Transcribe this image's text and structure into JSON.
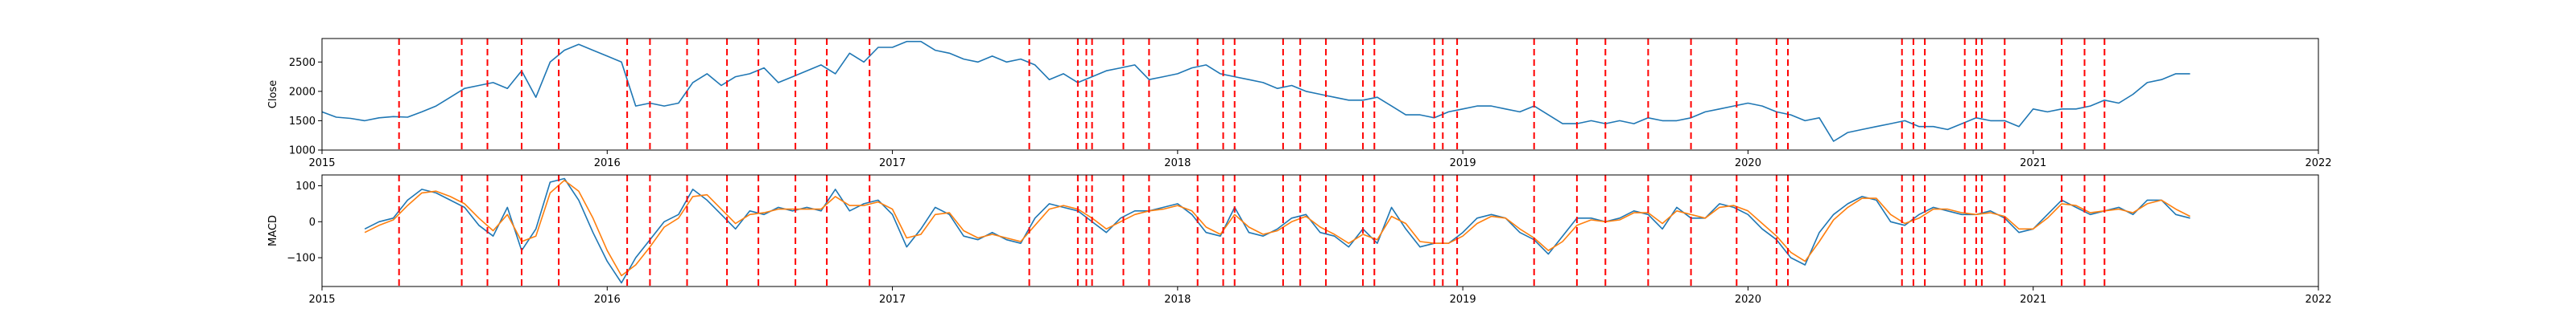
{
  "chart_data": [
    {
      "type": "line",
      "title": "",
      "xlabel": "",
      "ylabel": "Close",
      "xlim": [
        2015.0,
        2022.0
      ],
      "ylim": [
        1000,
        2900
      ],
      "x_ticks": [
        2015,
        2016,
        2017,
        2018,
        2019,
        2020,
        2021,
        2022
      ],
      "x_tick_labels": [
        "2015",
        "2016",
        "2017",
        "2018",
        "2019",
        "2020",
        "2021",
        "2022"
      ],
      "y_ticks": [
        1000,
        1500,
        2000,
        2500
      ],
      "y_tick_labels": [
        "1000",
        "1500",
        "2000",
        "2500"
      ],
      "grid": false,
      "series": [
        {
          "color": "#1f77b4",
          "x": [
            2015.0,
            2015.05,
            2015.1,
            2015.15,
            2015.2,
            2015.25,
            2015.3,
            2015.35,
            2015.4,
            2015.45,
            2015.5,
            2015.55,
            2015.6,
            2015.65,
            2015.7,
            2015.75,
            2015.8,
            2015.85,
            2015.9,
            2015.95,
            2016.0,
            2016.05,
            2016.1,
            2016.15,
            2016.2,
            2016.25,
            2016.3,
            2016.35,
            2016.4,
            2016.45,
            2016.5,
            2016.55,
            2016.6,
            2016.65,
            2016.7,
            2016.75,
            2016.8,
            2016.85,
            2016.9,
            2016.95,
            2017.0,
            2017.05,
            2017.1,
            2017.15,
            2017.2,
            2017.25,
            2017.3,
            2017.35,
            2017.4,
            2017.45,
            2017.5,
            2017.55,
            2017.6,
            2017.65,
            2017.7,
            2017.75,
            2017.8,
            2017.85,
            2017.9,
            2017.95,
            2018.0,
            2018.05,
            2018.1,
            2018.15,
            2018.2,
            2018.25,
            2018.3,
            2018.35,
            2018.4,
            2018.45,
            2018.5,
            2018.55,
            2018.6,
            2018.65,
            2018.7,
            2018.75,
            2018.8,
            2018.85,
            2018.9,
            2018.95,
            2019.0,
            2019.05,
            2019.1,
            2019.15,
            2019.2,
            2019.25,
            2019.3,
            2019.35,
            2019.4,
            2019.45,
            2019.5,
            2019.55,
            2019.6,
            2019.65,
            2019.7,
            2019.75,
            2019.8,
            2019.85,
            2019.9,
            2019.95,
            2020.0,
            2020.05,
            2020.1,
            2020.15,
            2020.2,
            2020.25,
            2020.3,
            2020.35,
            2020.4,
            2020.45,
            2020.5,
            2020.55,
            2020.6,
            2020.65,
            2020.7,
            2020.75,
            2020.8,
            2020.85,
            2020.9,
            2020.95,
            2021.0,
            2021.05,
            2021.1,
            2021.15,
            2021.2,
            2021.25,
            2021.3,
            2021.35,
            2021.4,
            2021.45,
            2021.5,
            2021.55
          ],
          "y": [
            1650,
            1560,
            1540,
            1500,
            1550,
            1570,
            1560,
            1650,
            1750,
            1900,
            2050,
            2100,
            2150,
            2050,
            2350,
            1900,
            2500,
            2700,
            2800,
            2700,
            2600,
            2500,
            1750,
            1800,
            1750,
            1800,
            2150,
            2300,
            2100,
            2250,
            2300,
            2400,
            2150,
            2250,
            2350,
            2450,
            2300,
            2650,
            2500,
            2750,
            2750,
            2850,
            2850,
            2700,
            2650,
            2550,
            2500,
            2600,
            2500,
            2550,
            2450,
            2200,
            2300,
            2150,
            2250,
            2350,
            2400,
            2450,
            2200,
            2250,
            2300,
            2400,
            2450,
            2300,
            2250,
            2200,
            2150,
            2050,
            2100,
            2000,
            1950,
            1900,
            1850,
            1850,
            1900,
            1750,
            1600,
            1600,
            1550,
            1650,
            1700,
            1750,
            1750,
            1700,
            1650,
            1750,
            1600,
            1450,
            1450,
            1500,
            1450,
            1500,
            1450,
            1550,
            1500,
            1500,
            1550,
            1650,
            1700,
            1750,
            1800,
            1750,
            1650,
            1600,
            1500,
            1550,
            1150,
            1300,
            1350,
            1400,
            1450,
            1500,
            1400,
            1400,
            1350,
            1450,
            1550,
            1500,
            1500,
            1400,
            1700,
            1650,
            1700,
            1700,
            1750,
            1850,
            1800,
            1950,
            2150,
            2200,
            2300,
            2300
          ]
        }
      ],
      "vlines_color": "#ff0000",
      "vlines_x": [
        2015.27,
        2015.49,
        2015.58,
        2015.7,
        2015.83,
        2016.07,
        2016.15,
        2016.28,
        2016.42,
        2016.53,
        2016.66,
        2016.77,
        2016.92,
        2017.48,
        2017.65,
        2017.68,
        2017.7,
        2017.81,
        2017.9,
        2018.07,
        2018.16,
        2018.2,
        2018.37,
        2018.43,
        2018.52,
        2018.65,
        2018.69,
        2018.9,
        2018.93,
        2018.98,
        2019.25,
        2019.4,
        2019.5,
        2019.65,
        2019.8,
        2019.96,
        2020.1,
        2020.14,
        2020.54,
        2020.58,
        2020.62,
        2020.76,
        2020.8,
        2020.82,
        2020.9,
        2021.1,
        2021.18,
        2021.25
      ]
    },
    {
      "type": "line",
      "title": "",
      "xlabel": "",
      "ylabel": "MACD",
      "xlim": [
        2015.0,
        2022.0
      ],
      "ylim": [
        -180,
        130
      ],
      "x_ticks": [
        2015,
        2016,
        2017,
        2018,
        2019,
        2020,
        2021,
        2022
      ],
      "x_tick_labels": [
        "2015",
        "2016",
        "2017",
        "2018",
        "2019",
        "2020",
        "2021",
        "2022"
      ],
      "y_ticks": [
        -100,
        0,
        100
      ],
      "y_tick_labels": [
        "−100",
        "0",
        "100"
      ],
      "grid": false,
      "series": [
        {
          "color": "#1f77b4",
          "x": [
            2015.15,
            2015.2,
            2015.25,
            2015.3,
            2015.35,
            2015.4,
            2015.45,
            2015.5,
            2015.55,
            2015.6,
            2015.65,
            2015.7,
            2015.75,
            2015.8,
            2015.85,
            2015.9,
            2015.95,
            2016.0,
            2016.05,
            2016.1,
            2016.15,
            2016.2,
            2016.25,
            2016.3,
            2016.35,
            2016.4,
            2016.45,
            2016.5,
            2016.55,
            2016.6,
            2016.65,
            2016.7,
            2016.75,
            2016.8,
            2016.85,
            2016.9,
            2016.95,
            2017.0,
            2017.05,
            2017.1,
            2017.15,
            2017.2,
            2017.25,
            2017.3,
            2017.35,
            2017.4,
            2017.45,
            2017.5,
            2017.55,
            2017.6,
            2017.65,
            2017.7,
            2017.75,
            2017.8,
            2017.85,
            2017.9,
            2017.95,
            2018.0,
            2018.05,
            2018.1,
            2018.15,
            2018.2,
            2018.25,
            2018.3,
            2018.35,
            2018.4,
            2018.45,
            2018.5,
            2018.55,
            2018.6,
            2018.65,
            2018.7,
            2018.75,
            2018.8,
            2018.85,
            2018.9,
            2018.95,
            2019.0,
            2019.05,
            2019.1,
            2019.15,
            2019.2,
            2019.25,
            2019.3,
            2019.35,
            2019.4,
            2019.45,
            2019.5,
            2019.55,
            2019.6,
            2019.65,
            2019.7,
            2019.75,
            2019.8,
            2019.85,
            2019.9,
            2019.95,
            2020.0,
            2020.05,
            2020.1,
            2020.15,
            2020.2,
            2020.25,
            2020.3,
            2020.35,
            2020.4,
            2020.45,
            2020.5,
            2020.55,
            2020.6,
            2020.65,
            2020.7,
            2020.75,
            2020.8,
            2020.85,
            2020.9,
            2020.95,
            2021.0,
            2021.05,
            2021.1,
            2021.15,
            2021.2,
            2021.25,
            2021.3,
            2021.35,
            2021.4,
            2021.45,
            2021.5,
            2021.55
          ],
          "y": [
            -20,
            0,
            10,
            60,
            90,
            80,
            60,
            40,
            -10,
            -40,
            40,
            -80,
            -20,
            110,
            120,
            60,
            -30,
            -110,
            -170,
            -100,
            -50,
            0,
            20,
            90,
            60,
            20,
            -20,
            30,
            20,
            40,
            30,
            40,
            30,
            90,
            30,
            50,
            60,
            20,
            -70,
            -20,
            40,
            20,
            -40,
            -50,
            -30,
            -50,
            -60,
            10,
            50,
            40,
            30,
            0,
            -30,
            10,
            30,
            30,
            40,
            50,
            20,
            -30,
            -40,
            40,
            -30,
            -40,
            -20,
            10,
            20,
            -30,
            -40,
            -70,
            -20,
            -60,
            40,
            -20,
            -70,
            -60,
            -60,
            -30,
            10,
            20,
            10,
            -30,
            -50,
            -90,
            -40,
            10,
            10,
            0,
            10,
            30,
            20,
            -20,
            40,
            10,
            10,
            50,
            40,
            20,
            -20,
            -50,
            -100,
            -120,
            -30,
            20,
            50,
            70,
            60,
            0,
            -10,
            20,
            40,
            30,
            20,
            20,
            30,
            10,
            -30,
            -20,
            20,
            60,
            40,
            20,
            30,
            40,
            20,
            60,
            60,
            20,
            10
          ]
        },
        {
          "color": "#ff7f0e",
          "x": [
            2015.15,
            2015.2,
            2015.25,
            2015.3,
            2015.35,
            2015.4,
            2015.45,
            2015.5,
            2015.55,
            2015.6,
            2015.65,
            2015.7,
            2015.75,
            2015.8,
            2015.85,
            2015.9,
            2015.95,
            2016.0,
            2016.05,
            2016.1,
            2016.15,
            2016.2,
            2016.25,
            2016.3,
            2016.35,
            2016.4,
            2016.45,
            2016.5,
            2016.55,
            2016.6,
            2016.65,
            2016.7,
            2016.75,
            2016.8,
            2016.85,
            2016.9,
            2016.95,
            2017.0,
            2017.05,
            2017.1,
            2017.15,
            2017.2,
            2017.25,
            2017.3,
            2017.35,
            2017.4,
            2017.45,
            2017.5,
            2017.55,
            2017.6,
            2017.65,
            2017.7,
            2017.75,
            2017.8,
            2017.85,
            2017.9,
            2017.95,
            2018.0,
            2018.05,
            2018.1,
            2018.15,
            2018.2,
            2018.25,
            2018.3,
            2018.35,
            2018.4,
            2018.45,
            2018.5,
            2018.55,
            2018.6,
            2018.65,
            2018.7,
            2018.75,
            2018.8,
            2018.85,
            2018.9,
            2018.95,
            2019.0,
            2019.05,
            2019.1,
            2019.15,
            2019.2,
            2019.25,
            2019.3,
            2019.35,
            2019.4,
            2019.45,
            2019.5,
            2019.55,
            2019.6,
            2019.65,
            2019.7,
            2019.75,
            2019.8,
            2019.85,
            2019.9,
            2019.95,
            2020.0,
            2020.05,
            2020.1,
            2020.15,
            2020.2,
            2020.25,
            2020.3,
            2020.35,
            2020.4,
            2020.45,
            2020.5,
            2020.55,
            2020.6,
            2020.65,
            2020.7,
            2020.75,
            2020.8,
            2020.85,
            2020.9,
            2020.95,
            2021.0,
            2021.05,
            2021.1,
            2021.15,
            2021.2,
            2021.25,
            2021.3,
            2021.35,
            2021.4,
            2021.45,
            2021.5,
            2021.55
          ],
          "y": [
            -30,
            -10,
            5,
            45,
            80,
            85,
            70,
            50,
            10,
            -25,
            20,
            -55,
            -40,
            80,
            115,
            85,
            10,
            -80,
            -150,
            -120,
            -70,
            -15,
            10,
            70,
            75,
            35,
            -5,
            20,
            25,
            35,
            35,
            35,
            35,
            70,
            45,
            45,
            55,
            35,
            -45,
            -35,
            20,
            25,
            -25,
            -45,
            -35,
            -45,
            -55,
            -10,
            35,
            45,
            35,
            10,
            -20,
            0,
            20,
            30,
            35,
            45,
            30,
            -15,
            -35,
            20,
            -15,
            -35,
            -25,
            0,
            15,
            -15,
            -35,
            -60,
            -35,
            -50,
            15,
            -5,
            -55,
            -60,
            -60,
            -40,
            -5,
            15,
            10,
            -20,
            -45,
            -80,
            -55,
            -10,
            5,
            0,
            5,
            25,
            25,
            -5,
            30,
            20,
            10,
            40,
            45,
            30,
            -5,
            -40,
            -85,
            -110,
            -55,
            5,
            40,
            65,
            65,
            20,
            -5,
            10,
            35,
            35,
            25,
            20,
            25,
            15,
            -20,
            -20,
            10,
            50,
            45,
            25,
            30,
            35,
            25,
            50,
            60,
            35,
            15
          ]
        }
      ],
      "vlines_color": "#ff0000",
      "vlines_x": [
        2015.27,
        2015.49,
        2015.58,
        2015.7,
        2015.83,
        2016.07,
        2016.15,
        2016.28,
        2016.42,
        2016.53,
        2016.66,
        2016.77,
        2016.92,
        2017.48,
        2017.65,
        2017.68,
        2017.7,
        2017.81,
        2017.9,
        2018.07,
        2018.16,
        2018.2,
        2018.37,
        2018.43,
        2018.52,
        2018.65,
        2018.69,
        2018.9,
        2018.93,
        2018.98,
        2019.25,
        2019.4,
        2019.5,
        2019.65,
        2019.8,
        2019.96,
        2020.1,
        2020.14,
        2020.54,
        2020.58,
        2020.62,
        2020.76,
        2020.8,
        2020.82,
        2020.9,
        2021.1,
        2021.18,
        2021.25
      ]
    }
  ]
}
